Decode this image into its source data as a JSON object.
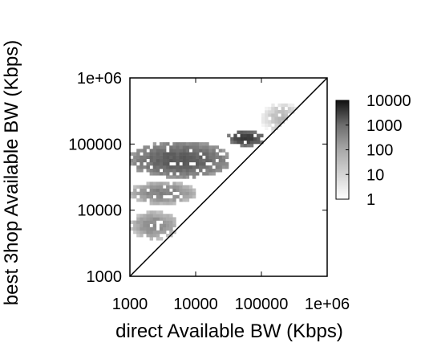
{
  "chart_data": {
    "type": "heatmap",
    "x_axis": {
      "label": "direct Available BW (Kbps)",
      "scale": "log",
      "range": [
        1000,
        1000000
      ],
      "ticks": [
        1000,
        10000,
        100000,
        1000000
      ],
      "tick_labels": [
        "1000",
        "10000",
        "100000",
        "1e+06"
      ]
    },
    "y_axis": {
      "label": "best 3hop Available BW (Kbps)",
      "scale": "log",
      "range": [
        1000,
        1000000
      ],
      "ticks": [
        1000,
        10000,
        100000,
        1000000
      ],
      "tick_labels": [
        "1000",
        "10000",
        "100000",
        "1e+06"
      ]
    },
    "diagonal_line": {
      "from": [
        1000,
        1000
      ],
      "to": [
        1000000,
        1000000
      ]
    },
    "colorbar": {
      "scale": "log",
      "range": [
        1,
        10000
      ],
      "ticks": [
        10000,
        1000,
        100,
        10,
        1
      ],
      "tick_labels": [
        "10000",
        "1000",
        "100",
        "10",
        "1"
      ],
      "color_low": "#ffffff",
      "color_high": "#000000"
    },
    "clusters": [
      {
        "x_range": [
          1000,
          5000
        ],
        "y_range": [
          3500,
          9000
        ],
        "peak_count": 100
      },
      {
        "x_range": [
          1000,
          9000
        ],
        "y_range": [
          12000,
          25000
        ],
        "peak_count": 150
      },
      {
        "x_range": [
          1000,
          30000
        ],
        "y_range": [
          30000,
          100000
        ],
        "peak_count": 700
      },
      {
        "x_range": [
          30000,
          100000
        ],
        "y_range": [
          90000,
          150000
        ],
        "peak_count": 2500
      },
      {
        "x_range": [
          100000,
          400000
        ],
        "y_range": [
          130000,
          400000
        ],
        "peak_count": 15
      }
    ],
    "grid": false,
    "legend": "colorbar-right"
  }
}
